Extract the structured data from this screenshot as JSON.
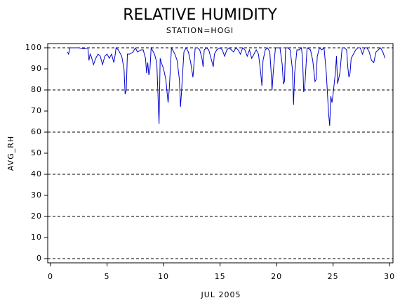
{
  "chart_data": {
    "type": "line",
    "title": "RELATIVE HUMIDITY",
    "subtitle": "STATION=HOGI",
    "x_label": "JUL 2005",
    "y_label": "AVG_RH",
    "xlim": [
      -0.25,
      30.3
    ],
    "ylim": [
      -2,
      102
    ],
    "xticks": [
      0,
      5,
      10,
      15,
      20,
      25,
      30
    ],
    "yticks": [
      0,
      10,
      20,
      30,
      40,
      50,
      60,
      70,
      80,
      90,
      100
    ],
    "grid_lines": [
      0,
      20,
      40,
      60,
      80,
      100
    ],
    "series": [
      {
        "color": "#0000cc",
        "x": [
          1.5,
          1.6,
          1.7,
          2,
          2.5,
          3,
          3.3,
          3.4,
          3.5,
          3.6,
          3.8,
          4,
          4.2,
          4.4,
          4.6,
          4.8,
          5,
          5.2,
          5.4,
          5.6,
          5.7,
          5.8,
          6,
          6.3,
          6.5,
          6.6,
          6.7,
          6.8,
          7,
          7.3,
          7.5,
          7.7,
          8,
          8.2,
          8.4,
          8.5,
          8.6,
          8.7,
          8.8,
          8.9,
          9,
          9.2,
          9.4,
          9.6,
          9.7,
          9.8,
          10,
          10.2,
          10.4,
          10.5,
          10.7,
          10.9,
          11,
          11.2,
          11.4,
          11.5,
          11.6,
          11.8,
          12,
          12.2,
          12.4,
          12.6,
          12.8,
          13,
          13.2,
          13.4,
          13.5,
          13.6,
          13.8,
          14,
          14.2,
          14.4,
          14.5,
          14.7,
          15,
          15.2,
          15.4,
          15.6,
          15.8,
          16,
          16.2,
          16.4,
          16.6,
          16.8,
          17,
          17.2,
          17.4,
          17.6,
          17.8,
          18,
          18.2,
          18.4,
          18.6,
          18.7,
          18.8,
          19,
          19.2,
          19.4,
          19.5,
          19.6,
          19.7,
          19.9,
          20.1,
          20.3,
          20.5,
          20.6,
          20.7,
          20.8,
          21,
          21.2,
          21.4,
          21.5,
          21.6,
          21.8,
          22,
          22.2,
          22.3,
          22.4,
          22.5,
          22.7,
          23,
          23.2,
          23.4,
          23.5,
          23.6,
          23.8,
          24,
          24.2,
          24.4,
          24.6,
          24.7,
          24.8,
          24.9,
          25,
          25.2,
          25.3,
          25.4,
          25.6,
          25.8,
          26,
          26.2,
          26.3,
          26.4,
          26.5,
          26.6,
          26.8,
          27,
          27.2,
          27.4,
          27.6,
          27.8,
          28,
          28.2,
          28.4,
          28.6,
          28.8,
          29,
          29.2,
          29.4,
          29.6
        ],
        "values": [
          98,
          97,
          100,
          100,
          100,
          99.5,
          100,
          94,
          97,
          96,
          92,
          95,
          97,
          96,
          92,
          96,
          97,
          95,
          97,
          93,
          96,
          100,
          99,
          96,
          90,
          78,
          80,
          97,
          97,
          98,
          100,
          98,
          99,
          99,
          95,
          88,
          93,
          87,
          90,
          100,
          99,
          97,
          93,
          64,
          95,
          93,
          90,
          85,
          74,
          80,
          100,
          98,
          97,
          94,
          85,
          72,
          80,
          98,
          100,
          98,
          93,
          86,
          100,
          100,
          99,
          95,
          91,
          99,
          100,
          99,
          95,
          91,
          97,
          99,
          100,
          99,
          96,
          99,
          100,
          99,
          98,
          100,
          99,
          97,
          100,
          99,
          96,
          99,
          95,
          97,
          99,
          97,
          88,
          82,
          94,
          99,
          100,
          98,
          90,
          80,
          88,
          100,
          100,
          100,
          92,
          83,
          84,
          100,
          100,
          99,
          90,
          73,
          88,
          99,
          99,
          100,
          95,
          79,
          82,
          100,
          99,
          94,
          84,
          85,
          96,
          100,
          99,
          100,
          88,
          69,
          63,
          77,
          74,
          78,
          88,
          96,
          83,
          88,
          100,
          100,
          99,
          91,
          86,
          88,
          95,
          97,
          99,
          100,
          100,
          97,
          100,
          100,
          98,
          94,
          93,
          98,
          99,
          100,
          98,
          95
        ]
      }
    ]
  }
}
